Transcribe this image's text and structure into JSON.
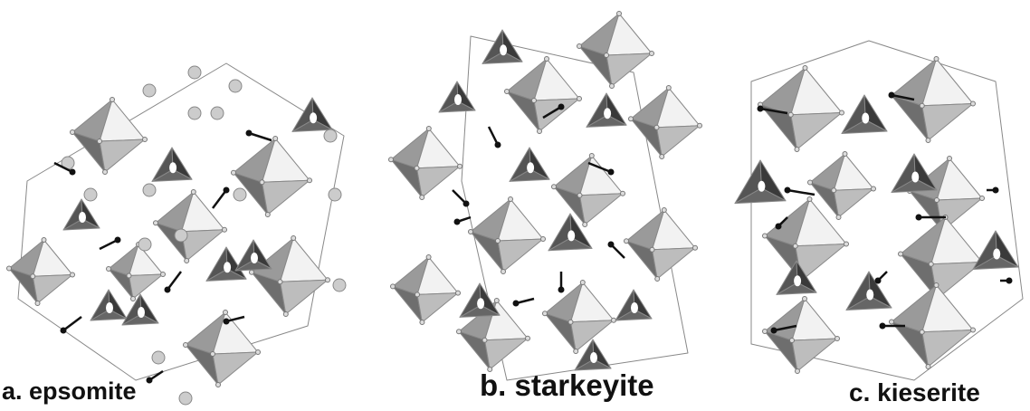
{
  "panels": [
    {
      "label": "a. epsomite"
    },
    {
      "label": "b. starkeyite"
    },
    {
      "label": "c. kieserite"
    }
  ]
}
